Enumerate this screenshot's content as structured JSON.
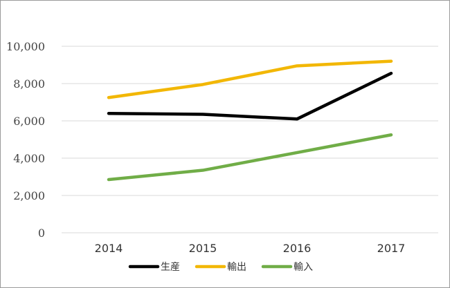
{
  "chart_data": {
    "type": "line",
    "title": "",
    "xlabel": "",
    "ylabel": "",
    "categories": [
      "2014",
      "2015",
      "2016",
      "2017"
    ],
    "ylim": [
      0,
      10000
    ],
    "yticks": [
      0,
      2000,
      4000,
      6000,
      8000,
      10000
    ],
    "ytick_labels": [
      "0",
      "2,000",
      "4,000",
      "6,000",
      "8,000",
      "10,000"
    ],
    "grid": "horizontal",
    "legend_position": "bottom",
    "series": [
      {
        "name": "生産",
        "color": "#000000",
        "values": [
          6400,
          6350,
          6100,
          8550
        ]
      },
      {
        "name": "輸出",
        "color": "#f2b705",
        "values": [
          7250,
          7950,
          8950,
          9200
        ]
      },
      {
        "name": "輸入",
        "color": "#70ad47",
        "values": [
          2850,
          3350,
          4300,
          5250
        ]
      }
    ]
  }
}
